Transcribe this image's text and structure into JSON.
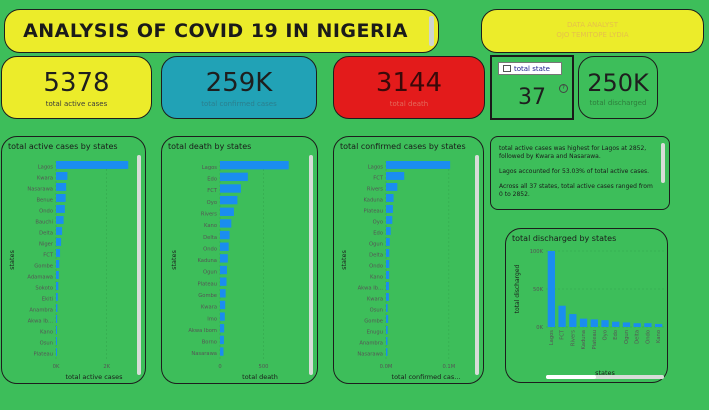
{
  "header": {
    "title": "ANALYSIS OF COVID 19 IN NIGERIA"
  },
  "analyst": {
    "line1": "DATA ANALYST",
    "line2": "OJO TEMITOPE LYDIA"
  },
  "kpis": {
    "active": {
      "value": "5378",
      "label": "total active cases"
    },
    "confirmed": {
      "value": "259K",
      "label": "total confirmed cases"
    },
    "death": {
      "value": "3144",
      "label": "total death"
    },
    "states": {
      "value": "37",
      "slicer": "total state"
    },
    "discharged": {
      "value": "250K",
      "label": "total discharged"
    }
  },
  "narrative": {
    "p1": "total active cases was highest for Lagos at 2852, followed by Kwara and Nasarawa.",
    "p2": "Lagos accounted for 53.03% of total active cases.",
    "p3": "Across all 37 states, total active cases ranged from 0 to 2852."
  },
  "colors": {
    "bar": "#1a8df0",
    "card_yellow": "#ecec2a",
    "card_teal": "#21a2b6",
    "card_red": "#e31b1b",
    "bg": "#3dbe5a"
  },
  "chart_data": [
    {
      "type": "bar",
      "orientation": "horizontal",
      "title": "total active cases by states",
      "xlabel": "total active cases",
      "ylabel": "states",
      "xticks": [
        "0K",
        "2K"
      ],
      "xlim": [
        0,
        3000
      ],
      "categories": [
        "Lagos",
        "Kwara",
        "Nasarawa",
        "Benue",
        "Ondo",
        "Bauchi",
        "Delta",
        "Niger",
        "FCT",
        "Gombe",
        "Adamawa",
        "Sokoto",
        "Ekiti",
        "Anambra",
        "Akwa Ib...",
        "Kano",
        "Osun",
        "Plateau"
      ],
      "values": [
        2852,
        450,
        400,
        380,
        350,
        300,
        240,
        200,
        160,
        130,
        110,
        90,
        70,
        55,
        45,
        35,
        25,
        15
      ]
    },
    {
      "type": "bar",
      "orientation": "horizontal",
      "title": "total death by states",
      "xlabel": "total death",
      "ylabel": "states",
      "xticks": [
        "0",
        "500"
      ],
      "xlim": [
        0,
        1000
      ],
      "categories": [
        "Lagos",
        "Edo",
        "FCT",
        "Oyo",
        "Rivers",
        "Kano",
        "Delta",
        "Ondo",
        "Kaduna",
        "Ogun",
        "Plateau",
        "Gombe",
        "Kwara",
        "Imo",
        "Akwa Ibom",
        "Borno",
        "Nasarawa"
      ],
      "values": [
        790,
        320,
        240,
        200,
        160,
        130,
        110,
        100,
        90,
        80,
        75,
        65,
        60,
        55,
        48,
        45,
        40
      ]
    },
    {
      "type": "bar",
      "orientation": "horizontal",
      "title": "total confirmed cases by states",
      "xlabel": "total confirmed cas...",
      "ylabel": "states",
      "xticks": [
        "0.0M",
        "0.1M"
      ],
      "xlim": [
        0,
        0.14
      ],
      "categories": [
        "Lagos",
        "FCT",
        "Rivers",
        "Kaduna",
        "Plateau",
        "Oyo",
        "Edo",
        "Ogun",
        "Delta",
        "Ondo",
        "Kano",
        "Akwa Ib...",
        "Kwara",
        "Osun",
        "Gombe",
        "Enugu",
        "Anambra",
        "Nasarawa"
      ],
      "values": [
        0.102,
        0.029,
        0.018,
        0.012,
        0.011,
        0.01,
        0.0075,
        0.006,
        0.0053,
        0.0052,
        0.005,
        0.0047,
        0.0046,
        0.0026,
        0.0034,
        0.0027,
        0.0024,
        0.0023
      ]
    },
    {
      "type": "bar",
      "orientation": "vertical",
      "title": "total discharged by states",
      "xlabel": "states",
      "ylabel": "total discharged",
      "yticks": [
        "0K",
        "50K",
        "100K"
      ],
      "ylim": [
        0,
        100
      ],
      "categories": [
        "Lagos",
        "FCT",
        "Rivers",
        "Kaduna",
        "Plateau",
        "Oyo",
        "Edo",
        "Ogun",
        "Delta",
        "Ondo",
        "Kano"
      ],
      "values": [
        100,
        28,
        17,
        11,
        10,
        9,
        7,
        6,
        5,
        5,
        4
      ]
    }
  ]
}
